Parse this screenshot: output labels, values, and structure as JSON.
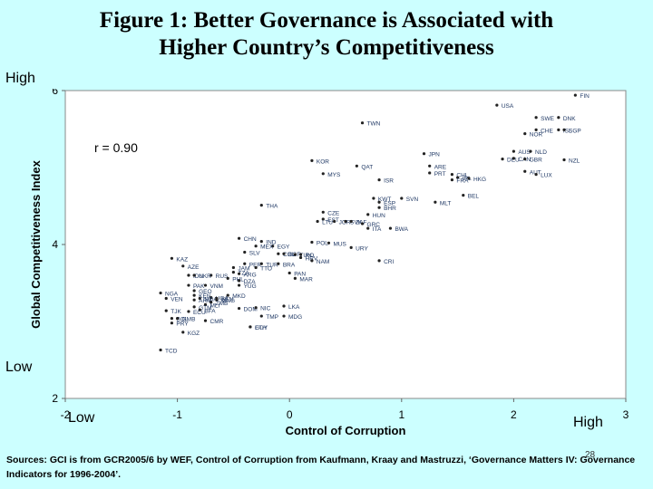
{
  "title_line1": "Figure 1: Better Governance is Associated with",
  "title_line2": "Higher Country’s Competitiveness",
  "labels": {
    "y_high": "High",
    "y_low": "Low",
    "x_low": "Low",
    "x_high": "High"
  },
  "source": "Sources: GCI is from GCR2005/6 by WEF, Control of Corruption from Kaufmann, Kraay and Mastruzzi, ‘Governance Matters IV: Governance Indicators for 1996-2004’.",
  "page_number": "28",
  "chart_data": {
    "type": "scatter",
    "xlabel": "Control of Corruption",
    "ylabel": "Global Competitiveness Index",
    "xlim": [
      -2,
      3
    ],
    "ylim": [
      2,
      6
    ],
    "xticks": [
      -2,
      -1,
      0,
      1,
      2,
      3
    ],
    "yticks": [
      2,
      4,
      6
    ],
    "annotation": "r = 0.90",
    "grid": false,
    "points": [
      {
        "label": "FIN",
        "x": 2.55,
        "y": 5.94
      },
      {
        "label": "USA",
        "x": 1.85,
        "y": 5.81
      },
      {
        "label": "SWE",
        "x": 2.2,
        "y": 5.65
      },
      {
        "label": "DNK",
        "x": 2.4,
        "y": 5.65
      },
      {
        "label": "TWN",
        "x": 0.65,
        "y": 5.58
      },
      {
        "label": "CHE",
        "x": 2.2,
        "y": 5.49
      },
      {
        "label": "ISL",
        "x": 2.4,
        "y": 5.49
      },
      {
        "label": "SGP",
        "x": 2.45,
        "y": 5.49
      },
      {
        "label": "NOR",
        "x": 2.1,
        "y": 5.44
      },
      {
        "label": "JPN",
        "x": 1.2,
        "y": 5.18
      },
      {
        "label": "AUS",
        "x": 2.0,
        "y": 5.21
      },
      {
        "label": "NLD",
        "x": 2.15,
        "y": 5.21
      },
      {
        "label": "DEU",
        "x": 1.9,
        "y": 5.11
      },
      {
        "label": "CAN",
        "x": 2.0,
        "y": 5.12
      },
      {
        "label": "GBR",
        "x": 2.1,
        "y": 5.11
      },
      {
        "label": "NZL",
        "x": 2.45,
        "y": 5.1
      },
      {
        "label": "KOR",
        "x": 0.2,
        "y": 5.09
      },
      {
        "label": "QAT",
        "x": 0.6,
        "y": 5.02
      },
      {
        "label": "ARE",
        "x": 1.25,
        "y": 5.02
      },
      {
        "label": "MYS",
        "x": 0.3,
        "y": 4.92
      },
      {
        "label": "PRT",
        "x": 1.25,
        "y": 4.93
      },
      {
        "label": "AUT",
        "x": 2.1,
        "y": 4.95
      },
      {
        "label": "LUX",
        "x": 2.2,
        "y": 4.91
      },
      {
        "label": "CHL",
        "x": 1.45,
        "y": 4.91
      },
      {
        "label": "IRL",
        "x": 1.5,
        "y": 4.87
      },
      {
        "label": "HKG",
        "x": 1.6,
        "y": 4.86
      },
      {
        "label": "ISR",
        "x": 0.8,
        "y": 4.84
      },
      {
        "label": "FRA",
        "x": 1.45,
        "y": 4.84
      },
      {
        "label": "BEL",
        "x": 1.55,
        "y": 4.64
      },
      {
        "label": "KWT",
        "x": 0.75,
        "y": 4.6
      },
      {
        "label": "SVN",
        "x": 1.0,
        "y": 4.6
      },
      {
        "label": "MLT",
        "x": 1.3,
        "y": 4.55
      },
      {
        "label": "ESP",
        "x": 0.8,
        "y": 4.55
      },
      {
        "label": "BHR",
        "x": 0.8,
        "y": 4.48
      },
      {
        "label": "THA",
        "x": -0.25,
        "y": 4.51
      },
      {
        "label": "CZE",
        "x": 0.3,
        "y": 4.42
      },
      {
        "label": "HUN",
        "x": 0.7,
        "y": 4.39
      },
      {
        "label": "EST",
        "x": 0.3,
        "y": 4.33
      },
      {
        "label": "LTU",
        "x": 0.25,
        "y": 4.3
      },
      {
        "label": "JOR",
        "x": 0.4,
        "y": 4.3
      },
      {
        "label": "SVK",
        "x": 0.5,
        "y": 4.3
      },
      {
        "label": "ZAF",
        "x": 0.55,
        "y": 4.3
      },
      {
        "label": "GRC",
        "x": 0.65,
        "y": 4.27
      },
      {
        "label": "ITA",
        "x": 0.7,
        "y": 4.21
      },
      {
        "label": "BWA",
        "x": 0.9,
        "y": 4.21
      },
      {
        "label": "CHN",
        "x": -0.45,
        "y": 4.08
      },
      {
        "label": "IND",
        "x": -0.25,
        "y": 4.04
      },
      {
        "label": "EGY",
        "x": -0.15,
        "y": 3.98
      },
      {
        "label": "MEX",
        "x": -0.3,
        "y": 3.98
      },
      {
        "label": "POL",
        "x": 0.2,
        "y": 4.03
      },
      {
        "label": "MUS",
        "x": 0.35,
        "y": 4.02
      },
      {
        "label": "URY",
        "x": 0.55,
        "y": 3.96
      },
      {
        "label": "SLV",
        "x": -0.4,
        "y": 3.9
      },
      {
        "label": "COL",
        "x": -0.1,
        "y": 3.88
      },
      {
        "label": "BGR",
        "x": -0.05,
        "y": 3.88
      },
      {
        "label": "TUN",
        "x": 0.05,
        "y": 3.87
      },
      {
        "label": "RO",
        "x": 0.1,
        "y": 3.87
      },
      {
        "label": "HRV",
        "x": 0.1,
        "y": 3.83
      },
      {
        "label": "NAM",
        "x": 0.2,
        "y": 3.79
      },
      {
        "label": "CRI",
        "x": 0.8,
        "y": 3.79
      },
      {
        "label": "KAZ",
        "x": -1.05,
        "y": 3.82
      },
      {
        "label": "AZE",
        "x": -0.95,
        "y": 3.72
      },
      {
        "label": "PER",
        "x": -0.4,
        "y": 3.75
      },
      {
        "label": "TUR",
        "x": -0.25,
        "y": 3.75
      },
      {
        "label": "BRA",
        "x": -0.1,
        "y": 3.75
      },
      {
        "label": "JAM",
        "x": -0.5,
        "y": 3.7
      },
      {
        "label": "TTO",
        "x": -0.3,
        "y": 3.7
      },
      {
        "label": "IDN",
        "x": -0.9,
        "y": 3.6
      },
      {
        "label": "RUS",
        "x": -0.7,
        "y": 3.6
      },
      {
        "label": "UKR",
        "x": -0.85,
        "y": 3.6
      },
      {
        "label": "TZA",
        "x": -0.5,
        "y": 3.64
      },
      {
        "label": "ARG",
        "x": -0.45,
        "y": 3.62
      },
      {
        "label": "PAN",
        "x": 0.0,
        "y": 3.63
      },
      {
        "label": "MAR",
        "x": 0.05,
        "y": 3.56
      },
      {
        "label": "PHL",
        "x": -0.55,
        "y": 3.56
      },
      {
        "label": "DZA",
        "x": -0.45,
        "y": 3.53
      },
      {
        "label": "VNM",
        "x": -0.75,
        "y": 3.47
      },
      {
        "label": "YUG",
        "x": -0.45,
        "y": 3.47
      },
      {
        "label": "PAK",
        "x": -0.9,
        "y": 3.47
      },
      {
        "label": "GEO",
        "x": -0.85,
        "y": 3.4
      },
      {
        "label": "NGA",
        "x": -1.15,
        "y": 3.37
      },
      {
        "label": "KEN",
        "x": -0.85,
        "y": 3.34
      },
      {
        "label": "MKD",
        "x": -0.55,
        "y": 3.34
      },
      {
        "label": "UGA",
        "x": -0.7,
        "y": 3.31
      },
      {
        "label": "MDA",
        "x": -0.8,
        "y": 3.3
      },
      {
        "label": "SEN",
        "x": -0.65,
        "y": 3.3
      },
      {
        "label": "VEN",
        "x": -1.1,
        "y": 3.3
      },
      {
        "label": "MNG",
        "x": -0.65,
        "y": 3.28
      },
      {
        "label": "ARM",
        "x": -0.85,
        "y": 3.28
      },
      {
        "label": "ZMB",
        "x": -0.7,
        "y": 3.25
      },
      {
        "label": "MLI",
        "x": -0.75,
        "y": 3.22
      },
      {
        "label": "GTM",
        "x": -0.85,
        "y": 3.19
      },
      {
        "label": "BFA",
        "x": -0.8,
        "y": 3.15
      },
      {
        "label": "ECU",
        "x": -0.9,
        "y": 3.13
      },
      {
        "label": "DOM",
        "x": -0.45,
        "y": 3.17
      },
      {
        "label": "NIC",
        "x": -0.3,
        "y": 3.18
      },
      {
        "label": "LKA",
        "x": -0.05,
        "y": 3.2
      },
      {
        "label": "TJK",
        "x": -1.1,
        "y": 3.14
      },
      {
        "label": "TMP",
        "x": -0.25,
        "y": 3.07
      },
      {
        "label": "MDG",
        "x": -0.05,
        "y": 3.07
      },
      {
        "label": "BOL",
        "x": -1.05,
        "y": 3.04
      },
      {
        "label": "GMB",
        "x": -1.0,
        "y": 3.04
      },
      {
        "label": "PRY",
        "x": -1.05,
        "y": 2.98
      },
      {
        "label": "CMR",
        "x": -0.75,
        "y": 3.01
      },
      {
        "label": "ETH",
        "x": -0.35,
        "y": 2.93
      },
      {
        "label": "GUY",
        "x": -0.35,
        "y": 2.93
      },
      {
        "label": "KGZ",
        "x": -0.95,
        "y": 2.86
      },
      {
        "label": "TCD",
        "x": -1.15,
        "y": 2.63
      }
    ]
  }
}
